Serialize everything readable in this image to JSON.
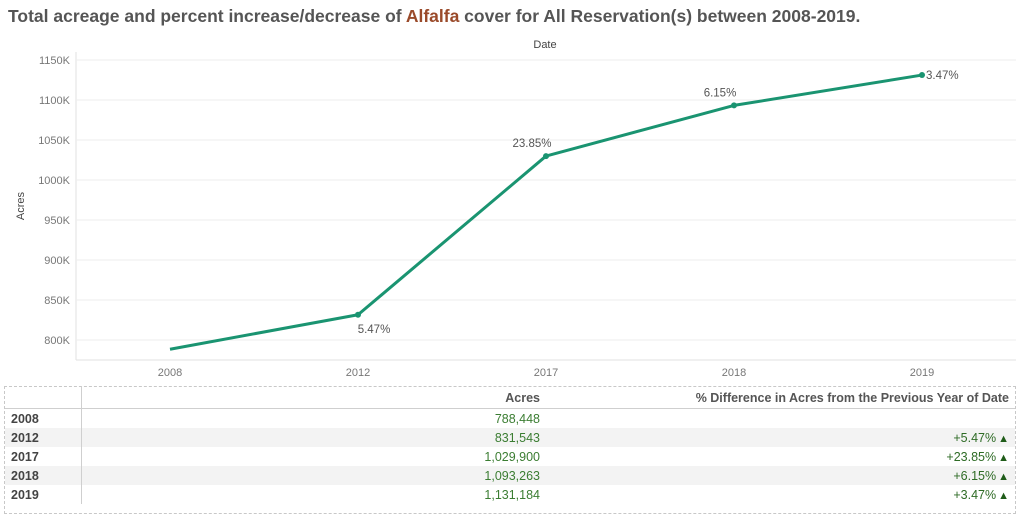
{
  "title": {
    "prefix": "Total acreage and percent increase/decrease of ",
    "highlight": "Alfalfa",
    "suffix": " cover for All Reservation(s) between 2008-2019."
  },
  "chart_data": {
    "type": "line",
    "title": "Total acreage and percent increase/decrease of Alfalfa cover for All Reservation(s) between 2008-2019.",
    "xlabel": "Date",
    "ylabel": "Acres",
    "categories": [
      "2008",
      "2012",
      "2017",
      "2018",
      "2019"
    ],
    "series": [
      {
        "values": [
          788448,
          831543,
          1029900,
          1093263,
          1131184
        ],
        "color": "#1a9471"
      }
    ],
    "point_labels": [
      "",
      "5.47%",
      "23.85%",
      "6.15%",
      "3.47%"
    ],
    "yticks": [
      800000,
      850000,
      900000,
      950000,
      1000000,
      1050000,
      1100000,
      1150000
    ],
    "ytick_labels": [
      "800K",
      "850K",
      "900K",
      "950K",
      "1000K",
      "1050K",
      "1100K",
      "1150K"
    ],
    "ylim": [
      775000,
      1160000
    ],
    "grid": true
  },
  "table": {
    "headers": [
      "",
      "Acres",
      "% Difference in Acres from the Previous Year of Date"
    ],
    "rows": [
      {
        "year": "2008",
        "acres": "788,448",
        "pct": ""
      },
      {
        "year": "2012",
        "acres": "831,543",
        "pct": "+5.47%"
      },
      {
        "year": "2017",
        "acres": "1,029,900",
        "pct": "+23.85%"
      },
      {
        "year": "2018",
        "acres": "1,093,263",
        "pct": "+6.15%"
      },
      {
        "year": "2019",
        "acres": "1,131,184",
        "pct": "+3.47%"
      }
    ],
    "up_marker": "▲"
  }
}
